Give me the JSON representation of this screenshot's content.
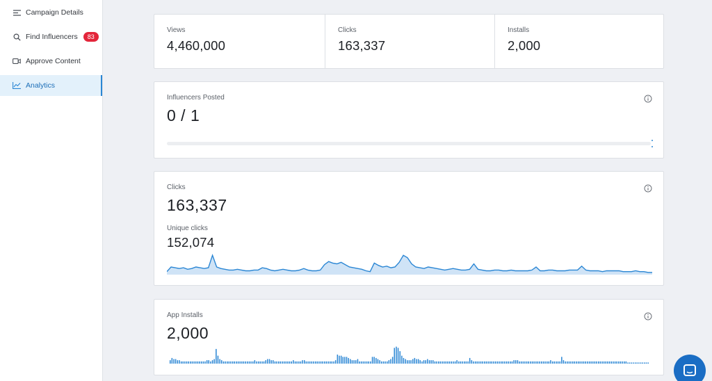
{
  "sidebar": {
    "items": [
      {
        "label": "Campaign Details",
        "icon": "list-icon"
      },
      {
        "label": "Find Influencers",
        "icon": "search-icon",
        "badge": "83"
      },
      {
        "label": "Approve Content",
        "icon": "video-icon"
      },
      {
        "label": "Analytics",
        "icon": "chart-icon",
        "active": true
      }
    ]
  },
  "summary": {
    "views": {
      "label": "Views",
      "value": "4,460,000"
    },
    "clicks": {
      "label": "Clicks",
      "value": "163,337"
    },
    "installs": {
      "label": "Installs",
      "value": "2,000"
    }
  },
  "influencers_posted": {
    "label": "Influencers Posted",
    "value": "0 / 1",
    "progress": 0
  },
  "clicks_panel": {
    "label": "Clicks",
    "value": "163,337",
    "unique_label": "Unique clicks",
    "unique_value": "152,074"
  },
  "installs_panel": {
    "label": "App Installs",
    "value": "2,000"
  },
  "colors": {
    "accent": "#2a86d4",
    "badge": "#e3253a",
    "chart_fill": "#cfe3f6"
  },
  "chart_data": [
    {
      "type": "area",
      "series": [
        {
          "values": [
            3,
            9,
            8,
            7,
            8,
            6,
            7,
            9,
            8,
            7,
            8,
            24,
            9,
            7,
            6,
            5,
            5,
            6,
            5,
            4,
            4,
            5,
            5,
            8,
            7,
            5,
            4,
            5,
            6,
            5,
            4,
            4,
            5,
            7,
            5,
            4,
            4,
            5,
            12,
            16,
            14,
            13,
            15,
            12,
            9,
            8,
            7,
            6,
            4,
            3,
            14,
            11,
            9,
            10,
            8,
            9,
            15,
            24,
            21,
            13,
            9,
            8,
            7,
            9,
            8,
            7,
            6,
            5,
            6,
            7,
            6,
            5,
            5,
            6,
            13,
            6,
            5,
            4,
            4,
            5,
            5,
            4,
            4,
            5,
            4,
            4,
            4,
            4,
            5,
            9,
            4,
            4,
            5,
            5,
            4,
            4,
            4,
            5,
            5,
            5,
            10,
            5,
            4,
            4,
            4,
            3,
            4,
            4,
            4,
            4,
            3,
            3,
            3,
            4,
            3,
            3,
            2,
            2
          ]
        }
      ]
    },
    {
      "type": "bar",
      "series": [
        {
          "values": [
            3,
            5,
            4,
            4,
            3,
            3,
            2,
            2,
            2,
            2,
            2,
            2,
            2,
            2,
            2,
            2,
            2,
            2,
            2,
            2,
            3,
            3,
            2,
            3,
            4,
            13,
            7,
            4,
            3,
            2,
            2,
            2,
            2,
            2,
            2,
            2,
            2,
            2,
            2,
            2,
            2,
            2,
            2,
            2,
            2,
            2,
            3,
            2,
            2,
            2,
            2,
            2,
            3,
            4,
            4,
            3,
            3,
            2,
            2,
            2,
            2,
            2,
            2,
            2,
            2,
            2,
            2,
            3,
            2,
            2,
            2,
            2,
            3,
            3,
            2,
            2,
            2,
            2,
            2,
            2,
            2,
            2,
            2,
            2,
            2,
            2,
            2,
            2,
            2,
            2,
            3,
            8,
            7,
            7,
            6,
            6,
            6,
            5,
            4,
            3,
            3,
            3,
            4,
            2,
            2,
            2,
            2,
            2,
            2,
            2,
            6,
            6,
            5,
            4,
            3,
            2,
            2,
            2,
            2,
            3,
            4,
            6,
            14,
            15,
            14,
            11,
            7,
            5,
            4,
            3,
            3,
            3,
            4,
            5,
            4,
            4,
            3,
            2,
            3,
            3,
            4,
            3,
            3,
            3,
            2,
            2,
            2,
            2,
            2,
            2,
            2,
            2,
            2,
            2,
            2,
            2,
            3,
            2,
            2,
            2,
            2,
            2,
            2,
            5,
            3,
            2,
            2,
            2,
            2,
            2,
            2,
            2,
            2,
            2,
            2,
            2,
            2,
            2,
            2,
            2,
            2,
            2,
            2,
            2,
            2,
            2,
            2,
            3,
            3,
            3,
            2,
            2,
            2,
            2,
            2,
            2,
            2,
            2,
            2,
            2,
            2,
            2,
            2,
            2,
            2,
            2,
            2,
            3,
            2,
            2,
            2,
            2,
            2,
            6,
            3,
            2,
            2,
            2,
            2,
            2,
            2,
            2,
            2,
            2,
            2,
            2,
            2,
            2,
            2,
            2,
            2,
            2,
            2,
            2,
            2,
            2,
            2,
            2,
            2,
            2,
            2,
            2,
            2,
            2,
            2,
            2,
            2,
            2,
            2,
            1,
            1,
            1,
            1,
            1,
            1,
            1,
            1,
            1,
            1,
            1,
            1
          ]
        }
      ]
    }
  ]
}
